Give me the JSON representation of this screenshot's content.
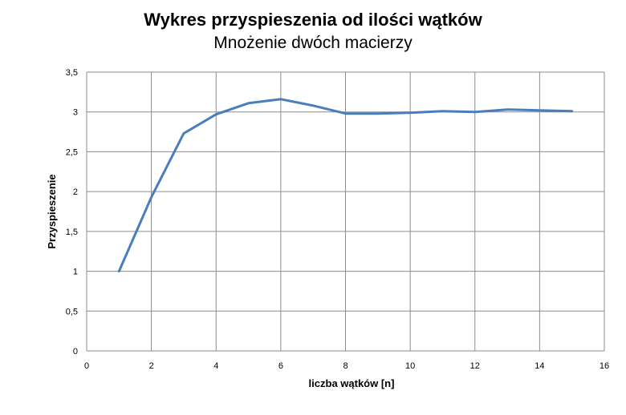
{
  "chart_data": {
    "type": "line",
    "title": "Wykres przyspieszenia  od ilości wątków",
    "subtitle": "Mnożenie dwóch macierzy",
    "xlabel": "liczba wątków [n]",
    "ylabel": "Przyspieszenie",
    "xlim": [
      0,
      16
    ],
    "ylim": [
      0,
      3.5
    ],
    "x_ticks": [
      "0",
      "2",
      "4",
      "6",
      "8",
      "10",
      "12",
      "14",
      "16"
    ],
    "y_ticks": [
      "0",
      "0,5",
      "1",
      "1,5",
      "2",
      "2,5",
      "3",
      "3,5"
    ],
    "grid": true,
    "series": [
      {
        "color": "#4a7ebb",
        "x": [
          1,
          2,
          3,
          4,
          5,
          6,
          7,
          8,
          9,
          10,
          11,
          12,
          13,
          14,
          15
        ],
        "y": [
          1.0,
          1.93,
          2.73,
          2.97,
          3.11,
          3.16,
          3.08,
          2.98,
          2.98,
          2.99,
          3.01,
          3.0,
          3.03,
          3.02,
          3.01
        ]
      }
    ]
  }
}
